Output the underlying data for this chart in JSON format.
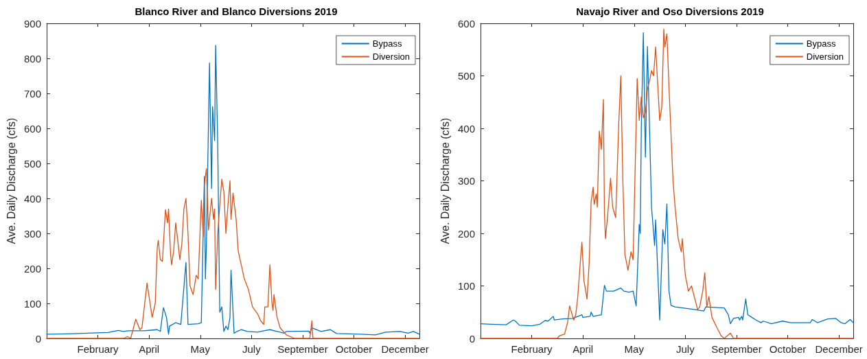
{
  "chart_data": [
    {
      "type": "line",
      "title": "Blanco River and Blanco Diversions 2019",
      "ylabel": "Ave. Daily Discharge (cfs)",
      "legend": "top right",
      "grid": false,
      "marker": "none",
      "line_style": "solid",
      "xlim": [
        "2019-01-01",
        "2019-12-31"
      ],
      "xticks": [
        {
          "value": "2019-02-20",
          "label": "February"
        },
        {
          "value": "2019-04-11",
          "label": "April"
        },
        {
          "value": "2019-05-31",
          "label": "May"
        },
        {
          "value": "2019-07-20",
          "label": "July"
        },
        {
          "value": "2019-09-08",
          "label": "September"
        },
        {
          "value": "2019-10-28",
          "label": "October"
        },
        {
          "value": "2019-12-17",
          "label": "December"
        }
      ],
      "ylim": [
        0,
        900
      ],
      "yticks": [
        0,
        100,
        200,
        300,
        400,
        500,
        600,
        700,
        800,
        900
      ],
      "series": [
        {
          "name": "Bypass",
          "color": "#0072bd",
          "x": [
            "2019-01-01",
            "2019-01-21",
            "2019-02-10",
            "2019-03-02",
            "2019-03-12",
            "2019-03-17",
            "2019-03-22",
            "2019-04-06",
            "2019-04-11",
            "2019-04-19",
            "2019-04-22",
            "2019-04-25",
            "2019-04-28",
            "2019-04-30",
            "2019-05-01",
            "2019-05-07",
            "2019-05-12",
            "2019-05-17",
            "2019-05-19",
            "2019-05-29",
            "2019-06-01",
            "2019-06-04",
            "2019-06-05",
            "2019-06-06",
            "2019-06-09",
            "2019-06-11",
            "2019-06-12",
            "2019-06-14",
            "2019-06-15",
            "2019-06-17",
            "2019-06-19",
            "2019-06-21",
            "2019-06-23",
            "2019-06-25",
            "2019-06-27",
            "2019-06-29",
            "2019-06-30",
            "2019-07-03",
            "2019-07-06",
            "2019-07-10",
            "2019-07-16",
            "2019-07-26",
            "2019-08-01",
            "2019-08-07",
            "2019-08-14",
            "2019-08-21",
            "2019-08-23",
            "2019-09-14",
            "2019-09-15",
            "2019-09-17",
            "2019-09-26",
            "2019-10-05",
            "2019-10-11",
            "2019-11-04",
            "2019-11-18",
            "2019-11-28",
            "2019-12-12",
            "2019-12-20",
            "2019-12-25",
            "2019-12-31"
          ],
          "values": [
            12,
            13,
            15,
            17,
            23,
            20,
            22,
            22,
            23,
            25,
            20,
            88,
            60,
            12,
            35,
            45,
            40,
            217,
            40,
            42,
            45,
            463,
            170,
            270,
            787,
            428,
            662,
            565,
            837,
            560,
            75,
            90,
            20,
            35,
            25,
            60,
            195,
            15,
            20,
            25,
            20,
            18,
            22,
            25,
            20,
            15,
            20,
            21,
            15,
            30,
            20,
            25,
            14,
            12,
            10,
            18,
            20,
            15,
            20,
            12
          ]
        },
        {
          "name": "Diversion",
          "color": "#d95319",
          "x": [
            "2019-01-01",
            "2019-03-17",
            "2019-03-21",
            "2019-03-24",
            "2019-03-29",
            "2019-04-02",
            "2019-04-04",
            "2019-04-09",
            "2019-04-14",
            "2019-04-17",
            "2019-04-19",
            "2019-04-20",
            "2019-04-22",
            "2019-04-24",
            "2019-04-27",
            "2019-04-29",
            "2019-04-30",
            "2019-05-02",
            "2019-05-03",
            "2019-05-05",
            "2019-05-07",
            "2019-05-09",
            "2019-05-11",
            "2019-05-13",
            "2019-05-15",
            "2019-05-17",
            "2019-05-19",
            "2019-05-21",
            "2019-05-24",
            "2019-05-27",
            "2019-05-29",
            "2019-06-01",
            "2019-06-03",
            "2019-06-04",
            "2019-06-06",
            "2019-06-08",
            "2019-06-11",
            "2019-06-13",
            "2019-06-14",
            "2019-06-15",
            "2019-06-17",
            "2019-06-21",
            "2019-06-23",
            "2019-06-25",
            "2019-06-27",
            "2019-06-29",
            "2019-06-30",
            "2019-07-02",
            "2019-07-05",
            "2019-07-07",
            "2019-07-10",
            "2019-07-13",
            "2019-07-17",
            "2019-07-21",
            "2019-07-26",
            "2019-07-29",
            "2019-08-01",
            "2019-08-02",
            "2019-08-05",
            "2019-08-07",
            "2019-08-09",
            "2019-08-10",
            "2019-08-11",
            "2019-08-14",
            "2019-08-17",
            "2019-08-23",
            "2019-08-31",
            "2019-09-15",
            "2019-09-17",
            "2019-09-18",
            "2019-12-31"
          ],
          "values": [
            0,
            0,
            5,
            0,
            55,
            25,
            30,
            158,
            60,
            100,
            260,
            280,
            225,
            220,
            368,
            330,
            370,
            240,
            210,
            250,
            330,
            280,
            225,
            270,
            370,
            400,
            300,
            150,
            125,
            180,
            170,
            395,
            290,
            440,
            485,
            310,
            400,
            340,
            370,
            140,
            300,
            455,
            420,
            300,
            380,
            450,
            340,
            415,
            340,
            250,
            210,
            170,
            140,
            90,
            70,
            50,
            40,
            90,
            90,
            210,
            100,
            80,
            125,
            60,
            30,
            10,
            0,
            0,
            50,
            0,
            0
          ]
        }
      ]
    },
    {
      "type": "line",
      "title": "Navajo River and Oso Diversions 2019",
      "ylabel": "Ave. Daily Discharge (cfs)",
      "legend": "top right",
      "grid": false,
      "marker": "none",
      "line_style": "solid",
      "xlim": [
        "2019-01-01",
        "2019-12-31"
      ],
      "xticks": [
        {
          "value": "2019-02-20",
          "label": "February"
        },
        {
          "value": "2019-04-11",
          "label": "April"
        },
        {
          "value": "2019-05-31",
          "label": "May"
        },
        {
          "value": "2019-07-20",
          "label": "July"
        },
        {
          "value": "2019-09-08",
          "label": "September"
        },
        {
          "value": "2019-10-28",
          "label": "October"
        },
        {
          "value": "2019-12-17",
          "label": "December"
        }
      ],
      "ylim": [
        0,
        600
      ],
      "yticks": [
        0,
        100,
        200,
        300,
        400,
        500,
        600
      ],
      "series": [
        {
          "name": "Bypass",
          "color": "#0072bd",
          "x": [
            "2019-01-01",
            "2019-01-11",
            "2019-01-26",
            "2019-02-02",
            "2019-02-04",
            "2019-02-08",
            "2019-02-20",
            "2019-02-28",
            "2019-03-05",
            "2019-03-08",
            "2019-03-13",
            "2019-03-14",
            "2019-03-22",
            "2019-04-01",
            "2019-04-10",
            "2019-04-11",
            "2019-04-18",
            "2019-04-19",
            "2019-04-21",
            "2019-04-29",
            "2019-05-02",
            "2019-05-04",
            "2019-05-11",
            "2019-05-18",
            "2019-05-21",
            "2019-05-26",
            "2019-05-30",
            "2019-06-02",
            "2019-06-05",
            "2019-06-06",
            "2019-06-07",
            "2019-06-09",
            "2019-06-11",
            "2019-06-13",
            "2019-06-17",
            "2019-06-20",
            "2019-06-21",
            "2019-06-25",
            "2019-06-28",
            "2019-06-30",
            "2019-07-02",
            "2019-07-04",
            "2019-07-06",
            "2019-07-10",
            "2019-07-29",
            "2019-08-07",
            "2019-08-09",
            "2019-08-27",
            "2019-08-31",
            "2019-09-02",
            "2019-09-05",
            "2019-09-10",
            "2019-09-11",
            "2019-09-13",
            "2019-09-14",
            "2019-09-17",
            "2019-09-19",
            "2019-09-23",
            "2019-09-27",
            "2019-10-02",
            "2019-10-04",
            "2019-10-12",
            "2019-10-23",
            "2019-10-31",
            "2019-11-19",
            "2019-11-21",
            "2019-11-26",
            "2019-12-06",
            "2019-12-14",
            "2019-12-19",
            "2019-12-23",
            "2019-12-28",
            "2019-12-31"
          ],
          "values": [
            28,
            27,
            26,
            35,
            33,
            25,
            24,
            27,
            34,
            33,
            42,
            35,
            37,
            38,
            45,
            40,
            42,
            50,
            42,
            45,
            101,
            90,
            90,
            96,
            90,
            88,
            90,
            62,
            217,
            200,
            400,
            582,
            345,
            556,
            250,
            177,
            226,
            35,
            207,
            180,
            256,
            91,
            63,
            60,
            55,
            52,
            60,
            58,
            45,
            28,
            38,
            40,
            35,
            42,
            35,
            75,
            45,
            40,
            35,
            30,
            33,
            28,
            33,
            30,
            30,
            36,
            30,
            37,
            38,
            30,
            28,
            36,
            30
          ]
        },
        {
          "name": "Diversion",
          "color": "#d95319",
          "x": [
            "2019-01-01",
            "2019-03-17",
            "2019-03-19",
            "2019-03-24",
            "2019-03-27",
            "2019-03-29",
            "2019-04-02",
            "2019-04-04",
            "2019-04-06",
            "2019-04-09",
            "2019-04-10",
            "2019-04-12",
            "2019-04-15",
            "2019-04-17",
            "2019-04-19",
            "2019-04-21",
            "2019-04-22",
            "2019-04-24",
            "2019-04-25",
            "2019-04-27",
            "2019-04-29",
            "2019-05-01",
            "2019-05-02",
            "2019-05-03",
            "2019-05-05",
            "2019-05-08",
            "2019-05-10",
            "2019-05-13",
            "2019-05-16",
            "2019-05-18",
            "2019-05-20",
            "2019-05-22",
            "2019-05-25",
            "2019-05-28",
            "2019-05-30",
            "2019-06-03",
            "2019-06-05",
            "2019-06-07",
            "2019-06-09",
            "2019-06-11",
            "2019-06-13",
            "2019-06-15",
            "2019-06-17",
            "2019-06-19",
            "2019-06-21",
            "2019-06-25",
            "2019-06-27",
            "2019-06-29",
            "2019-06-30",
            "2019-07-02",
            "2019-07-04",
            "2019-07-08",
            "2019-07-10",
            "2019-07-13",
            "2019-07-16",
            "2019-07-17",
            "2019-07-20",
            "2019-07-23",
            "2019-07-26",
            "2019-08-01",
            "2019-08-03",
            "2019-08-06",
            "2019-08-08",
            "2019-08-10",
            "2019-08-12",
            "2019-08-15",
            "2019-08-20",
            "2019-08-24",
            "2019-08-27",
            "2019-09-02",
            "2019-09-05",
            "2019-12-31"
          ],
          "values": [
            0,
            0,
            5,
            8,
            30,
            62,
            35,
            45,
            80,
            160,
            183,
            110,
            75,
            140,
            260,
            288,
            255,
            275,
            250,
            395,
            360,
            455,
            240,
            190,
            230,
            305,
            250,
            230,
            410,
            500,
            300,
            160,
            130,
            165,
            150,
            495,
            415,
            460,
            420,
            430,
            475,
            490,
            510,
            500,
            555,
            415,
            440,
            589,
            555,
            580,
            480,
            300,
            250,
            190,
            165,
            190,
            120,
            90,
            100,
            55,
            60,
            90,
            125,
            60,
            80,
            40,
            20,
            5,
            0,
            10,
            0,
            0
          ]
        }
      ]
    }
  ]
}
